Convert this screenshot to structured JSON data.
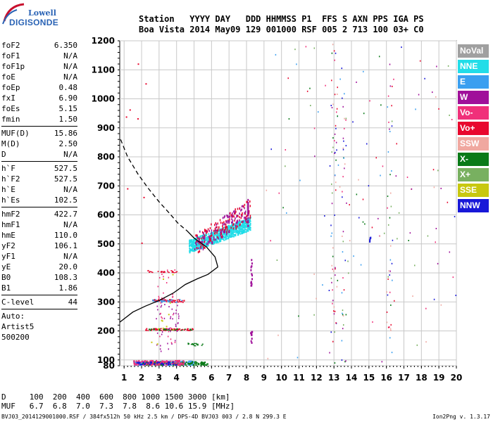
{
  "logo": {
    "line1": "Lowell",
    "line2": "DIGISONDE"
  },
  "header": {
    "row1": "Station   YYYY DAY   DDD HHMMSS P1  FFS S AXN PPS IGA PS",
    "row2": "Boa Vista 2014 May09 129 001000 RSF 005 2 713 100 03+ C0"
  },
  "params": [
    {
      "group": [
        {
          "name": "foF2",
          "value": "6.350"
        },
        {
          "name": "foF1",
          "value": "N/A"
        },
        {
          "name": "foF1p",
          "value": "N/A"
        },
        {
          "name": "foE",
          "value": "N/A"
        },
        {
          "name": "foEp",
          "value": "0.48"
        },
        {
          "name": "fxI",
          "value": "6.90"
        },
        {
          "name": "foEs",
          "value": "5.15"
        },
        {
          "name": "fmin",
          "value": "1.50"
        }
      ]
    },
    {
      "group": [
        {
          "name": "MUF(D)",
          "value": "15.86"
        },
        {
          "name": "M(D)",
          "value": "2.50"
        },
        {
          "name": "D",
          "value": "N/A"
        }
      ]
    },
    {
      "group": [
        {
          "name": "h`F",
          "value": "527.5"
        },
        {
          "name": "h`F2",
          "value": "527.5"
        },
        {
          "name": "h`E",
          "value": "N/A"
        },
        {
          "name": "h`Es",
          "value": "102.5"
        }
      ]
    },
    {
      "group": [
        {
          "name": "hmF2",
          "value": "422.7"
        },
        {
          "name": "hmF1",
          "value": "N/A"
        },
        {
          "name": "hmE",
          "value": "110.0"
        },
        {
          "name": "yF2",
          "value": "106.1"
        },
        {
          "name": "yF1",
          "value": "N/A"
        },
        {
          "name": "yE",
          "value": "20.0"
        },
        {
          "name": "B0",
          "value": "108.3"
        },
        {
          "name": "B1",
          "value": "1.86"
        }
      ]
    },
    {
      "group": [
        {
          "name": "C-level",
          "value": "44"
        }
      ]
    }
  ],
  "auto": {
    "line1": "Auto:",
    "line2": "Artist5",
    "line3": "500200"
  },
  "footer": {
    "d_row": "D     100  200  400  600  800 1000 1500 3000 [km]",
    "muf_row": "MUF   6.7  6.8  7.0  7.3  7.8  8.6 10.6 15.9 [MHz]"
  },
  "bottom_line": "BVJ03_2014129001000.RSF / 384fx512h 50 kHz 2.5 km / DPS-4D BVJ03 003 / 2.8 N 299.3 E",
  "version": "Ion2Png v. 1.3.17",
  "legend": [
    {
      "label": "NoVal",
      "color": "#a0a0a0"
    },
    {
      "label": "NNE",
      "color": "#22dde8"
    },
    {
      "label": "E",
      "color": "#3a9ff0"
    },
    {
      "label": "W",
      "color": "#a0109a"
    },
    {
      "label": "Vo-",
      "color": "#f0307a"
    },
    {
      "label": "Vo+",
      "color": "#e8082e"
    },
    {
      "label": "SSW",
      "color": "#f0a8a0"
    },
    {
      "label": "X-",
      "color": "#0a7a18"
    },
    {
      "label": "X+",
      "color": "#78b060"
    },
    {
      "label": "SSE",
      "color": "#c8c810"
    },
    {
      "label": "NNW",
      "color": "#1818d8"
    }
  ],
  "chart_data": {
    "type": "scatter",
    "xlim": [
      0.75,
      20.0
    ],
    "ylim": [
      80,
      1200
    ],
    "x_ticks": [
      1,
      2,
      3,
      4,
      5,
      6,
      7,
      8,
      9,
      10,
      11,
      12,
      13,
      14,
      15,
      16,
      17,
      18,
      19,
      20
    ],
    "y_ticks": [
      80,
      100,
      200,
      300,
      400,
      500,
      600,
      700,
      800,
      900,
      1000,
      1100,
      1200
    ],
    "grid": true,
    "legend_placement": "right",
    "traces": [
      {
        "name": "NNE",
        "color": "#22dde8",
        "x_range": [
          4.7,
          8.2
        ],
        "y_range": [
          480,
          580
        ]
      },
      {
        "name": "W",
        "color": "#a0109a",
        "x_range": [
          5.0,
          8.2
        ],
        "y_range": [
          470,
          650
        ]
      },
      {
        "name": "Vo+",
        "color": "#e8082e",
        "x_range": [
          5.0,
          8.0
        ],
        "y_range": [
          500,
          640
        ]
      },
      {
        "name": "Vo-",
        "color": "#f0307a",
        "x_range": [
          1.5,
          4.6
        ],
        "y_range": [
          85,
          100
        ]
      },
      {
        "name": "X-",
        "color": "#0a7a18",
        "x_range": [
          2.0,
          5.8
        ],
        "y_range": [
          85,
          100
        ]
      },
      {
        "name": "E",
        "color": "#3a9ff0",
        "x_range": [
          1.5,
          5.0
        ],
        "y_range": [
          85,
          100
        ]
      }
    ],
    "profile_solid": [
      [
        0.75,
        230
      ],
      [
        1.5,
        265
      ],
      [
        2.2,
        285
      ],
      [
        3.0,
        305
      ],
      [
        3.8,
        330
      ],
      [
        4.5,
        360
      ],
      [
        5.2,
        380
      ],
      [
        5.8,
        395
      ],
      [
        6.35,
        420
      ],
      [
        6.35,
        423
      ],
      [
        6.2,
        455
      ],
      [
        5.7,
        490
      ],
      [
        5.0,
        520
      ],
      [
        4.6,
        545
      ]
    ],
    "profile_dashed": [
      [
        0.8,
        860
      ],
      [
        1.2,
        800
      ],
      [
        1.8,
        740
      ],
      [
        2.4,
        690
      ],
      [
        3.0,
        645
      ],
      [
        3.6,
        605
      ],
      [
        4.1,
        570
      ],
      [
        4.6,
        545
      ]
    ]
  }
}
